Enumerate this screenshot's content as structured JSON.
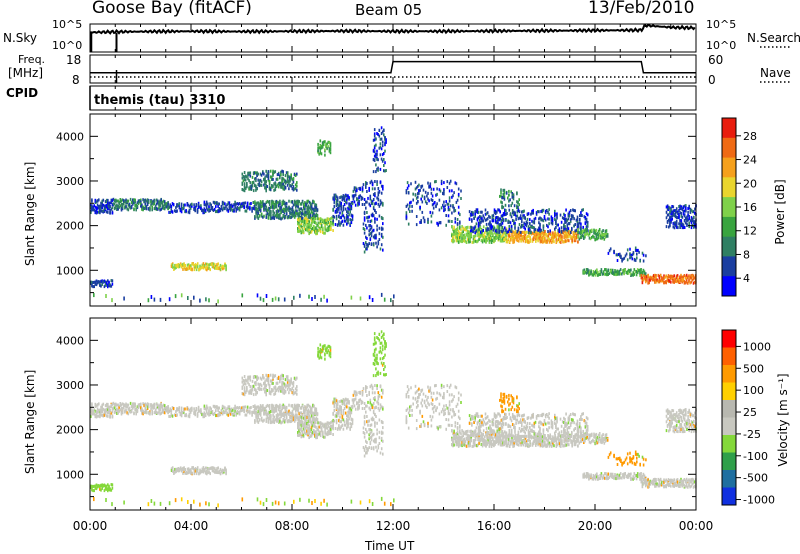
{
  "header": {
    "station": "Goose Bay (fitACF)",
    "beam": "Beam 05",
    "date": "13/Feb/2010"
  },
  "labels": {
    "nsky": "N.Sky",
    "freq_line1": "Freq.",
    "freq_line2": "[MHz]",
    "cpid": "CPID",
    "nsearch": "N.Search",
    "nave": "Nave",
    "cpid_value": "themis (tau) 3310"
  },
  "colors": {
    "axis": "#000000",
    "power_scale": [
      "#0000ff",
      "#1a3ea0",
      "#2f7f63",
      "#39a43f",
      "#7fd14a",
      "#e9d52e",
      "#f5a01c",
      "#ef6a14",
      "#e81d0e"
    ],
    "velocity_scale": [
      "#ff0000",
      "#ff6000",
      "#ff9a00",
      "#ffd000",
      "#b8b8b0",
      "#c8c8c0",
      "#84d83a",
      "#2f9f4a",
      "#1f6fa0",
      "#1030e0"
    ]
  },
  "chart_data": [
    {
      "type": "line",
      "name": "noise-panel",
      "left_tick_labels": [
        "10^5",
        "10^0"
      ],
      "right_tick_labels": [
        "10^5",
        "10^0"
      ],
      "series": [
        {
          "name": "N.Sky",
          "x": [
            "00:00",
            "01:00",
            "02:00",
            "04:00",
            "06:00",
            "08:00",
            "10:00",
            "12:00",
            "14:00",
            "16:00",
            "18:00",
            "20:00",
            "21:50",
            "22:00",
            "23:00",
            "24:00"
          ],
          "values": [
            0.7,
            0.72,
            0.73,
            0.74,
            0.73,
            0.74,
            0.75,
            0.74,
            0.74,
            0.75,
            0.76,
            0.77,
            0.78,
            0.95,
            0.88,
            0.86
          ]
        }
      ]
    },
    {
      "type": "line",
      "name": "frequency-panel",
      "left_ticks": [
        18,
        8
      ],
      "right_ticks": [
        60,
        0
      ],
      "series": [
        {
          "name": "Freq.",
          "x": [
            "00:00",
            "11:55",
            "12:00",
            "21:50",
            "21:55",
            "24:00"
          ],
          "values": [
            12,
            12,
            16,
            16,
            12,
            12
          ]
        },
        {
          "name": "Nave",
          "style": "dotted",
          "values": [
            4
          ]
        }
      ]
    },
    {
      "type": "heatmap",
      "name": "power",
      "ylabel": "Slant Range [km]",
      "colorbar_label": "Power [dB]",
      "colorbar_ticks": [
        28,
        24,
        20,
        16,
        12,
        8,
        4
      ],
      "yticks": [
        1000,
        2000,
        3000,
        4000
      ],
      "ylim": [
        200,
        4500
      ],
      "xlim": [
        "00:00",
        "24:00"
      ]
    },
    {
      "type": "heatmap",
      "name": "velocity",
      "ylabel": "Slant Range [km]",
      "colorbar_label": "Velocity [m s⁻¹]",
      "colorbar_ticks": [
        1000,
        500,
        100,
        25,
        -25,
        -100,
        -500,
        -1000
      ],
      "yticks": [
        1000,
        2000,
        3000,
        4000
      ],
      "ylim": [
        200,
        4500
      ],
      "xticks": [
        "00:00",
        "04:00",
        "08:00",
        "12:00",
        "16:00",
        "20:00",
        "00:00"
      ],
      "xlabel": "Time UT"
    }
  ]
}
